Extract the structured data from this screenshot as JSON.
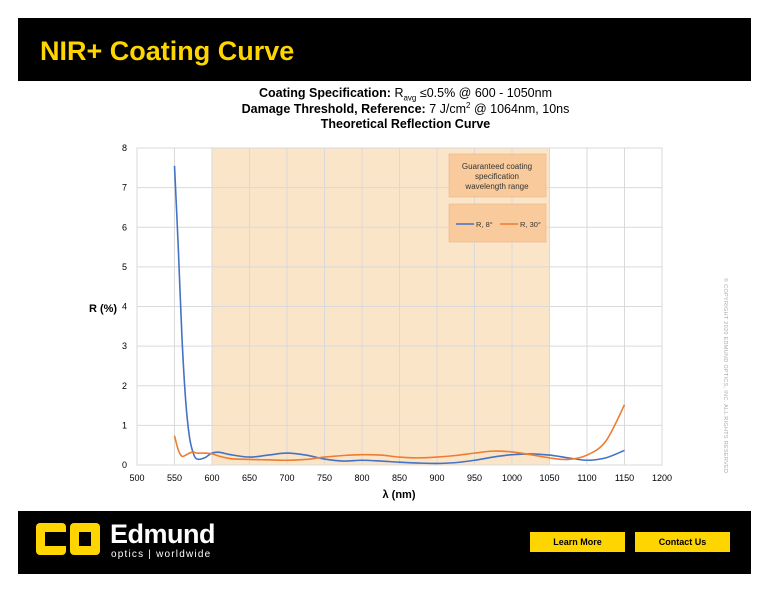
{
  "header": {
    "title": "NIR+ Coating Curve"
  },
  "spec": {
    "line1_label": "Coating Specification:",
    "line1_r": "R",
    "line1_sub": "avg",
    "line1_rest": "≤0.5% @ 600 - 1050nm",
    "line2_label": "Damage Threshold, Reference:",
    "line2_value": "7 J/cm",
    "line2_sup": "2",
    "line2_rest": "@ 1064nm, 10ns",
    "line3": "Theoretical Reflection Curve"
  },
  "copyright": "© COPYRIGHT 2020 EDMUND OPTICS, INC. ALL RIGHTS RESERVED",
  "footer": {
    "brand": "Edmund",
    "tagline": "optics | worldwide",
    "learn_more": "Learn More",
    "contact_us": "Contact Us"
  },
  "colors": {
    "brand_yellow": "#ffd500",
    "band_fill": "#fbe5c9",
    "series_8": "#4472c4",
    "series_30": "#ed7d31"
  },
  "chart_data": {
    "type": "line",
    "xlabel": "λ (nm)",
    "ylabel": "R (%)",
    "xlim": [
      500,
      1200
    ],
    "ylim": [
      0,
      8
    ],
    "xticks": [
      500,
      550,
      600,
      650,
      700,
      750,
      800,
      850,
      900,
      950,
      1000,
      1050,
      1100,
      1150,
      1200
    ],
    "yticks": [
      0,
      1,
      2,
      3,
      4,
      5,
      6,
      7,
      8
    ],
    "grid": true,
    "highlight_band": {
      "x": [
        600,
        1050
      ],
      "label": "Guaranteed coating specification wavelength range"
    },
    "legend_position": "top-right",
    "series": [
      {
        "name": "R, 8°",
        "color": "#4472c4",
        "x": [
          550,
          555,
          560,
          565,
          570,
          575,
          580,
          590,
          600,
          610,
          625,
          650,
          675,
          700,
          725,
          750,
          775,
          800,
          825,
          850,
          875,
          900,
          925,
          950,
          975,
          1000,
          1025,
          1050,
          1075,
          1100,
          1125,
          1150
        ],
        "y": [
          7.55,
          5.5,
          3.2,
          1.6,
          0.7,
          0.3,
          0.15,
          0.18,
          0.3,
          0.32,
          0.26,
          0.2,
          0.25,
          0.3,
          0.25,
          0.15,
          0.1,
          0.12,
          0.1,
          0.07,
          0.05,
          0.04,
          0.06,
          0.12,
          0.2,
          0.26,
          0.28,
          0.25,
          0.18,
          0.12,
          0.18,
          0.37
        ]
      },
      {
        "name": "R, 30°",
        "color": "#ed7d31",
        "x": [
          550,
          555,
          560,
          565,
          570,
          575,
          580,
          590,
          600,
          610,
          625,
          650,
          675,
          700,
          725,
          750,
          775,
          800,
          825,
          850,
          875,
          900,
          925,
          950,
          975,
          1000,
          1025,
          1050,
          1075,
          1100,
          1125,
          1150
        ],
        "y": [
          0.74,
          0.38,
          0.22,
          0.25,
          0.3,
          0.33,
          0.3,
          0.3,
          0.28,
          0.22,
          0.16,
          0.14,
          0.13,
          0.12,
          0.14,
          0.2,
          0.24,
          0.26,
          0.25,
          0.2,
          0.18,
          0.2,
          0.24,
          0.3,
          0.35,
          0.33,
          0.26,
          0.18,
          0.14,
          0.25,
          0.6,
          1.52
        ]
      }
    ]
  }
}
